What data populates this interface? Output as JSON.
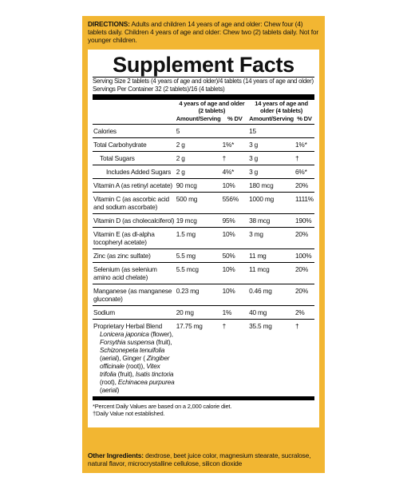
{
  "directions": {
    "label": "DIRECTIONS:",
    "text": "Adults and children 14 years of age and older: Chew four (4) tablets daily. Children 4 years of age and older: Chew two (2) tablets daily. Not for younger children."
  },
  "title": "Supplement Facts",
  "serving": [
    "Serving Size 2 tablets (4 years of age and older)/4 tablets (14 years of age and older)",
    "Servings Per Container 32 (2 tablets)/16 (4 tablets)"
  ],
  "table": {
    "groups": [
      "4 years of age and older (2 tablets)",
      "14 years of age and older (4 tablets)"
    ],
    "subheaders": [
      "Amount/Serving",
      "% DV",
      "Amount/Serving",
      "% DV"
    ],
    "rows": [
      {
        "cells": [
          "Calories",
          "5",
          "",
          "15",
          ""
        ]
      },
      {
        "cells": [
          "Total Carbohydrate",
          "2 g",
          "1%*",
          "3 g",
          "1%*"
        ],
        "sub": [
          {
            "cells": [
              "Total Sugars",
              "2 g",
              "†",
              "3 g",
              "†"
            ],
            "sub": [
              {
                "cells": [
                  "Includes Added Sugars",
                  "2 g",
                  "4%*",
                  "3 g",
                  "6%*"
                ]
              }
            ]
          }
        ]
      },
      {
        "cells": [
          "Vitamin A (as retinyl acetate)",
          "90 mcg",
          "10%",
          "180 mcg",
          "20%"
        ]
      },
      {
        "cells": [
          "Vitamin C (as ascorbic acid and sodium ascorbate)",
          "500 mg",
          "556%",
          "1000 mg",
          "1111%"
        ]
      },
      {
        "cells": [
          "Vitamin D (as cholecalciferol)",
          "19 mcg",
          "95%",
          "38 mcg",
          "190%"
        ]
      },
      {
        "cells": [
          "Vitamin E (as dl-alpha tocopheryl acetate)",
          "1.5 mg",
          "10%",
          "3 mg",
          "20%"
        ]
      },
      {
        "cells": [
          "Zinc (as zinc sulfate)",
          "5.5 mg",
          "50%",
          "11 mg",
          "100%"
        ]
      },
      {
        "cells": [
          "Selenium (as selenium amino acid chelate)",
          "5.5 mcg",
          "10%",
          "11 mcg",
          "20%"
        ]
      },
      {
        "cells": [
          "Manganese (as manganese gluconate)",
          "0.23 mg",
          "10%",
          "0.46 mg",
          "20%"
        ]
      },
      {
        "cells": [
          "Sodium",
          "20 mg",
          "1%",
          "40 mg",
          "2%"
        ]
      },
      {
        "cells": [
          "Proprietary Herbal Blend",
          "17.75 mg",
          "†",
          "35.5 mg",
          "†"
        ],
        "ingredients": [
          {
            "text": "Lonicera japonica",
            "italic": true
          },
          {
            "text": "(flower),",
            "italic": false
          },
          {
            "text": "Forsythia suspensa",
            "italic": true
          },
          {
            "text": "(fruit),",
            "italic": false
          },
          {
            "text": "Schizonepeta tenuifolia",
            "italic": true
          },
          {
            "text": "(aerial), Ginger (",
            "italic": false
          },
          {
            "text": "Zingiber officinale",
            "italic": true
          },
          {
            "text": "(root)),",
            "italic": false
          },
          {
            "text": "Vitex trifolia",
            "italic": true
          },
          {
            "text": "(fruit),",
            "italic": false
          },
          {
            "text": "Isatis tinctoria",
            "italic": true
          },
          {
            "text": "(root),",
            "italic": false
          },
          {
            "text": "Echinacea purpurea",
            "italic": true
          },
          {
            "text": "(aerial)",
            "italic": false
          }
        ]
      }
    ]
  },
  "footnotes": [
    "*Percent Daily Values are based on a 2,000 calorie diet.",
    "†Daily Value not established."
  ],
  "other": {
    "label": "Other Ingredients:",
    "text": "dextrose, beet juice color, magnesium stearate, sucralose, natural flavor, microcrystalline cellulose, silicon dioxide"
  }
}
